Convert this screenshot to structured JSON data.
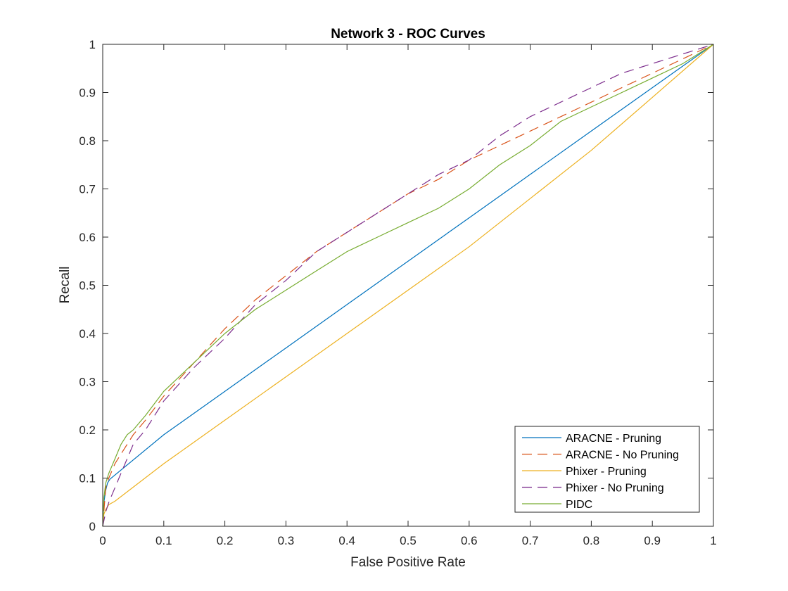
{
  "chart_data": {
    "type": "line",
    "title": "Network 3 - ROC Curves",
    "xlabel": "False Positive Rate",
    "ylabel": "Recall",
    "xlim": [
      0,
      1
    ],
    "ylim": [
      0,
      1
    ],
    "xticks": [
      "0",
      "0.1",
      "0.2",
      "0.3",
      "0.4",
      "0.5",
      "0.6",
      "0.7",
      "0.8",
      "0.9",
      "1"
    ],
    "yticks": [
      "0",
      "0.1",
      "0.2",
      "0.3",
      "0.4",
      "0.5",
      "0.6",
      "0.7",
      "0.8",
      "0.9",
      "1"
    ],
    "grid": false,
    "legend_position": "bottom-right",
    "series": [
      {
        "name": "ARACNE - Pruning",
        "color": "#0072BD",
        "dash": "solid",
        "x": [
          0,
          0.002,
          0.005,
          0.008,
          0.012,
          0.1,
          0.2,
          0.3,
          0.4,
          0.5,
          0.6,
          0.7,
          0.8,
          0.9,
          1
        ],
        "y": [
          0,
          0.05,
          0.075,
          0.09,
          0.098,
          0.19,
          0.28,
          0.37,
          0.46,
          0.55,
          0.64,
          0.73,
          0.82,
          0.91,
          1
        ]
      },
      {
        "name": "ARACNE - No Pruning",
        "color": "#D95319",
        "dash": "dashed",
        "x": [
          0,
          0.005,
          0.01,
          0.02,
          0.03,
          0.05,
          0.07,
          0.1,
          0.15,
          0.2,
          0.25,
          0.3,
          0.35,
          0.4,
          0.45,
          0.5,
          0.55,
          0.6,
          0.65,
          0.7,
          0.75,
          0.8,
          0.85,
          0.9,
          0.95,
          1
        ],
        "y": [
          0,
          0.08,
          0.1,
          0.13,
          0.15,
          0.19,
          0.22,
          0.27,
          0.34,
          0.41,
          0.47,
          0.52,
          0.57,
          0.61,
          0.65,
          0.69,
          0.72,
          0.76,
          0.79,
          0.82,
          0.85,
          0.88,
          0.91,
          0.94,
          0.97,
          1
        ]
      },
      {
        "name": "Phixer - Pruning",
        "color": "#EDB120",
        "dash": "solid",
        "x": [
          0,
          0.002,
          0.005,
          0.01,
          0.02,
          0.1,
          0.2,
          0.3,
          0.4,
          0.5,
          0.6,
          0.7,
          0.8,
          0.9,
          1
        ],
        "y": [
          0,
          0.025,
          0.035,
          0.045,
          0.052,
          0.13,
          0.22,
          0.31,
          0.4,
          0.49,
          0.58,
          0.68,
          0.78,
          0.89,
          1
        ]
      },
      {
        "name": "Phixer - No Pruning",
        "color": "#7E2F8E",
        "dash": "dashed",
        "x": [
          0,
          0.005,
          0.01,
          0.02,
          0.03,
          0.04,
          0.05,
          0.07,
          0.1,
          0.15,
          0.2,
          0.25,
          0.3,
          0.35,
          0.4,
          0.45,
          0.5,
          0.55,
          0.6,
          0.65,
          0.7,
          0.75,
          0.8,
          0.85,
          0.9,
          0.95,
          1
        ],
        "y": [
          0,
          0.03,
          0.05,
          0.08,
          0.11,
          0.14,
          0.17,
          0.2,
          0.26,
          0.33,
          0.39,
          0.46,
          0.51,
          0.57,
          0.61,
          0.65,
          0.69,
          0.73,
          0.76,
          0.81,
          0.85,
          0.88,
          0.91,
          0.94,
          0.96,
          0.98,
          1
        ]
      },
      {
        "name": "PIDC",
        "color": "#77AC30",
        "dash": "solid",
        "x": [
          0,
          0.002,
          0.005,
          0.01,
          0.02,
          0.03,
          0.04,
          0.05,
          0.07,
          0.1,
          0.15,
          0.2,
          0.25,
          0.3,
          0.35,
          0.4,
          0.45,
          0.5,
          0.55,
          0.6,
          0.65,
          0.7,
          0.75,
          0.8,
          0.85,
          0.9,
          0.95,
          1
        ],
        "y": [
          0,
          0.06,
          0.09,
          0.11,
          0.14,
          0.17,
          0.19,
          0.2,
          0.23,
          0.28,
          0.34,
          0.4,
          0.45,
          0.49,
          0.53,
          0.57,
          0.6,
          0.63,
          0.66,
          0.7,
          0.75,
          0.79,
          0.84,
          0.87,
          0.9,
          0.93,
          0.96,
          1
        ]
      }
    ]
  }
}
